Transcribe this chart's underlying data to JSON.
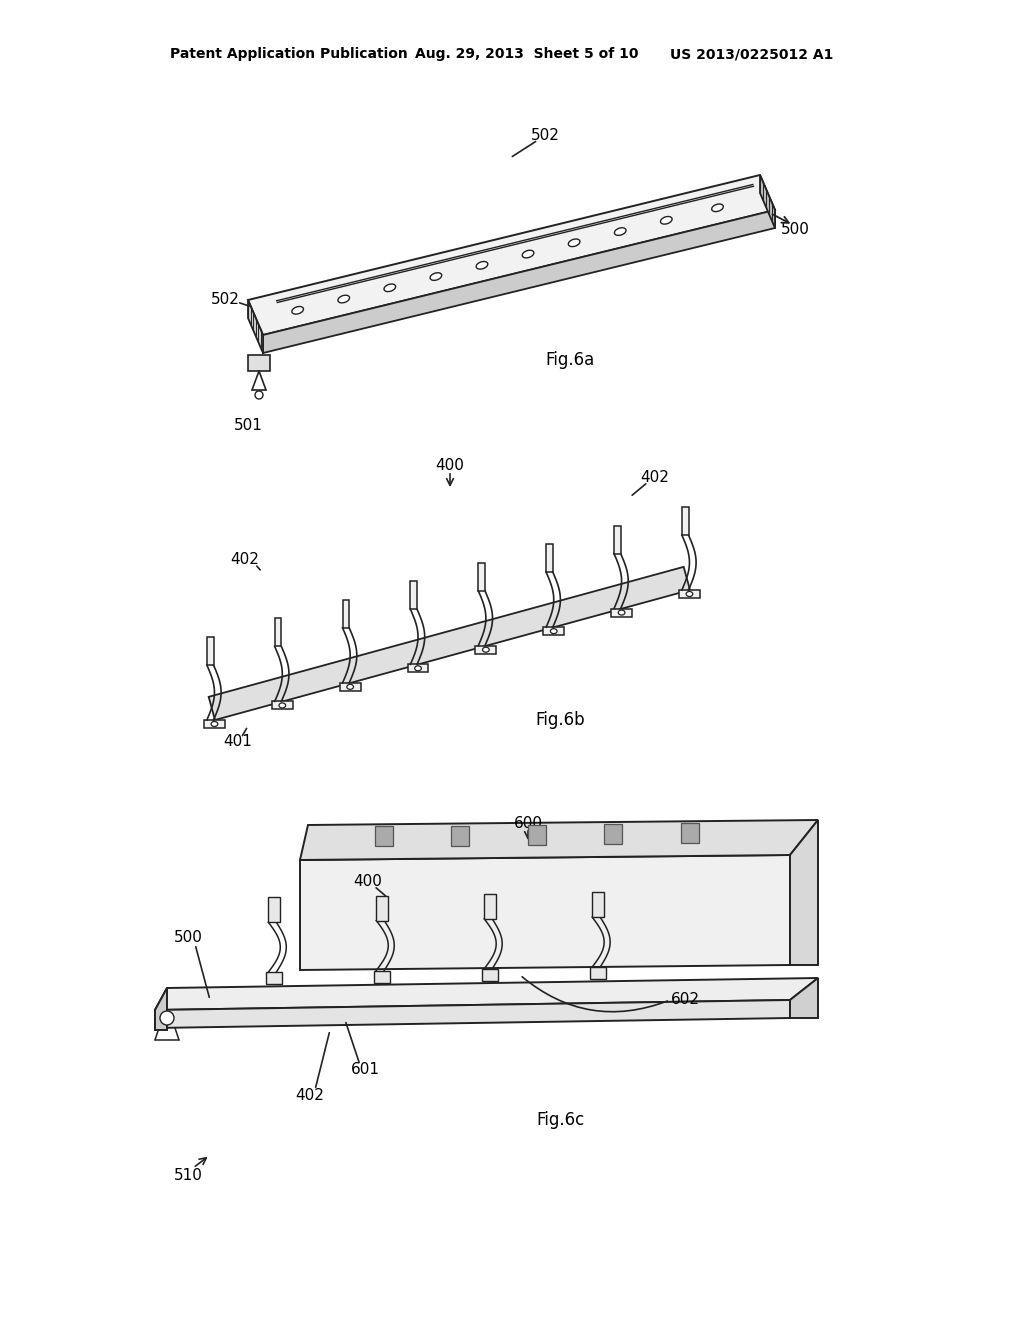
{
  "bg_color": "#ffffff",
  "line_color": "#222222",
  "header_left": "Patent Application Publication",
  "header_mid": "Aug. 29, 2013  Sheet 5 of 10",
  "header_right": "US 2013/0225012 A1",
  "fig6a_label": "Fig.6a",
  "fig6b_label": "Fig.6b",
  "fig6c_label": "Fig.6c"
}
